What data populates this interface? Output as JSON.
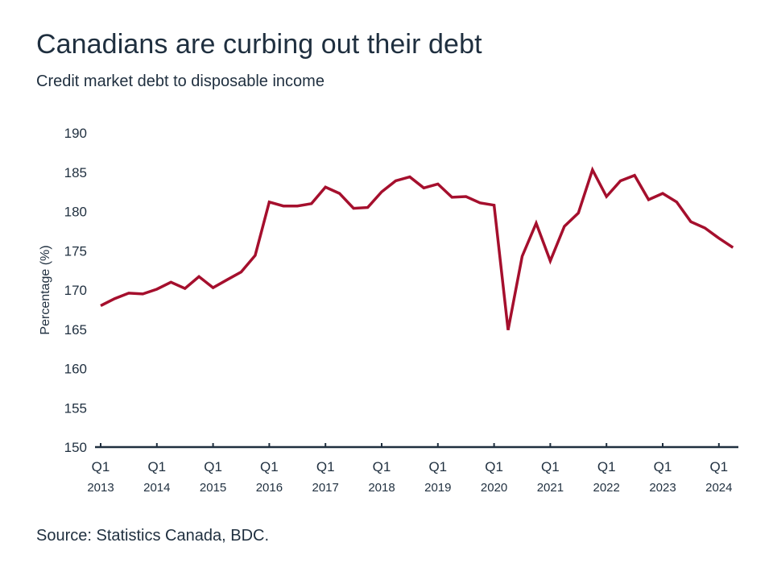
{
  "chart_data": {
    "type": "line",
    "title": "Canadians are curbing out their debt",
    "subtitle": "Credit market debt to disposable income",
    "ylabel": "Percentage (%)",
    "xlabel": "",
    "ylim": [
      150,
      190
    ],
    "yticks": [
      150,
      155,
      160,
      165,
      170,
      175,
      180,
      185,
      190
    ],
    "x_ticks": [
      {
        "quarter": "Q1",
        "year": "2013"
      },
      {
        "quarter": "Q1",
        "year": "2014"
      },
      {
        "quarter": "Q1",
        "year": "2015"
      },
      {
        "quarter": "Q1",
        "year": "2016"
      },
      {
        "quarter": "Q1",
        "year": "2017"
      },
      {
        "quarter": "Q1",
        "year": "2018"
      },
      {
        "quarter": "Q1",
        "year": "2019"
      },
      {
        "quarter": "Q1",
        "year": "2020"
      },
      {
        "quarter": "Q1",
        "year": "2021"
      },
      {
        "quarter": "Q1",
        "year": "2022"
      },
      {
        "quarter": "Q1",
        "year": "2023"
      },
      {
        "quarter": "Q1",
        "year": "2024"
      }
    ],
    "grid": false,
    "legend": "none",
    "line_color": "#a50f2d",
    "axis_color": "#1f2f3f",
    "series": [
      {
        "x": [
          "2013 Q1",
          "2013 Q2",
          "2013 Q3",
          "2013 Q4",
          "2014 Q1",
          "2014 Q2",
          "2014 Q3",
          "2014 Q4",
          "2015 Q1",
          "2015 Q2",
          "2015 Q3",
          "2015 Q4",
          "2016 Q1",
          "2016 Q2",
          "2016 Q3",
          "2016 Q4",
          "2017 Q1",
          "2017 Q2",
          "2017 Q3",
          "2017 Q4",
          "2018 Q1",
          "2018 Q2",
          "2018 Q3",
          "2018 Q4",
          "2019 Q1",
          "2019 Q2",
          "2019 Q3",
          "2019 Q4",
          "2020 Q1",
          "2020 Q2",
          "2020 Q3",
          "2020 Q4",
          "2021 Q1",
          "2021 Q2",
          "2021 Q3",
          "2021 Q4",
          "2022 Q1",
          "2022 Q2",
          "2022 Q3",
          "2022 Q4",
          "2023 Q1",
          "2023 Q2",
          "2023 Q3",
          "2023 Q4",
          "2024 Q1",
          "2024 Q2"
        ],
        "values": [
          168.0,
          168.9,
          169.6,
          169.5,
          170.1,
          171.0,
          170.2,
          171.7,
          170.3,
          171.3,
          172.3,
          174.4,
          181.2,
          180.7,
          180.7,
          181.0,
          183.1,
          182.3,
          180.4,
          180.5,
          182.5,
          183.9,
          184.4,
          183.0,
          183.5,
          181.8,
          181.9,
          181.1,
          180.8,
          164.9,
          174.3,
          178.5,
          173.7,
          178.1,
          179.8,
          185.3,
          181.9,
          183.9,
          184.6,
          181.5,
          182.3,
          181.2,
          178.7,
          177.9,
          176.6,
          175.4
        ]
      }
    ]
  }
}
